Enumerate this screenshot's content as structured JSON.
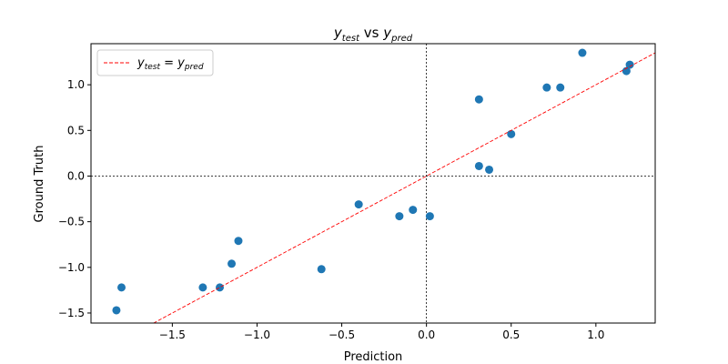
{
  "chart_data": {
    "type": "scatter",
    "title": {
      "main": "y",
      "sub1": "test",
      "mid": " vs ",
      "main2": "y",
      "sub2": "pred"
    },
    "xlabel": "Prediction",
    "ylabel": "Ground Truth",
    "xlim": [
      -1.98,
      1.35
    ],
    "ylim": [
      -1.61,
      1.45
    ],
    "xticks": [
      {
        "value": -1.5,
        "label": "−1.5"
      },
      {
        "value": -1.0,
        "label": "−1.0"
      },
      {
        "value": -0.5,
        "label": "−0.5"
      },
      {
        "value": 0.0,
        "label": "0.0"
      },
      {
        "value": 0.5,
        "label": "0.5"
      },
      {
        "value": 1.0,
        "label": "1.0"
      }
    ],
    "yticks": [
      {
        "value": -1.5,
        "label": "−1.5"
      },
      {
        "value": -1.0,
        "label": "−1.0"
      },
      {
        "value": -0.5,
        "label": "−0.5"
      },
      {
        "value": 0.0,
        "label": "0.0"
      },
      {
        "value": 0.5,
        "label": "0.5"
      },
      {
        "value": 1.0,
        "label": "1.0"
      }
    ],
    "grid": false,
    "reference_lines": {
      "x": 0,
      "y": 0,
      "style": "dotted",
      "color": "#000000"
    },
    "series": [
      {
        "kind": "points",
        "color": "#1f77b4",
        "x": [
          -1.83,
          -1.8,
          -1.32,
          -1.22,
          -1.15,
          -1.11,
          -0.62,
          -0.4,
          -0.16,
          -0.08,
          0.02,
          0.31,
          0.31,
          0.37,
          0.5,
          0.71,
          0.79,
          0.92,
          1.18,
          1.2
        ],
        "y": [
          -1.47,
          -1.22,
          -1.22,
          -1.22,
          -0.96,
          -0.71,
          -1.02,
          -0.31,
          -0.44,
          -0.37,
          -0.44,
          0.84,
          0.11,
          0.07,
          0.46,
          0.97,
          0.97,
          1.35,
          1.15,
          1.22
        ]
      },
      {
        "kind": "line",
        "name_parts": {
          "a": "y",
          "a_sub": "test",
          "eq": " = ",
          "b": "y",
          "b_sub": "pred"
        },
        "color": "#ff0000",
        "style": "dashed",
        "x": [
          -1.98,
          1.35
        ],
        "y": [
          -1.98,
          1.35
        ]
      }
    ],
    "legend": {
      "placement": "top-left"
    }
  }
}
